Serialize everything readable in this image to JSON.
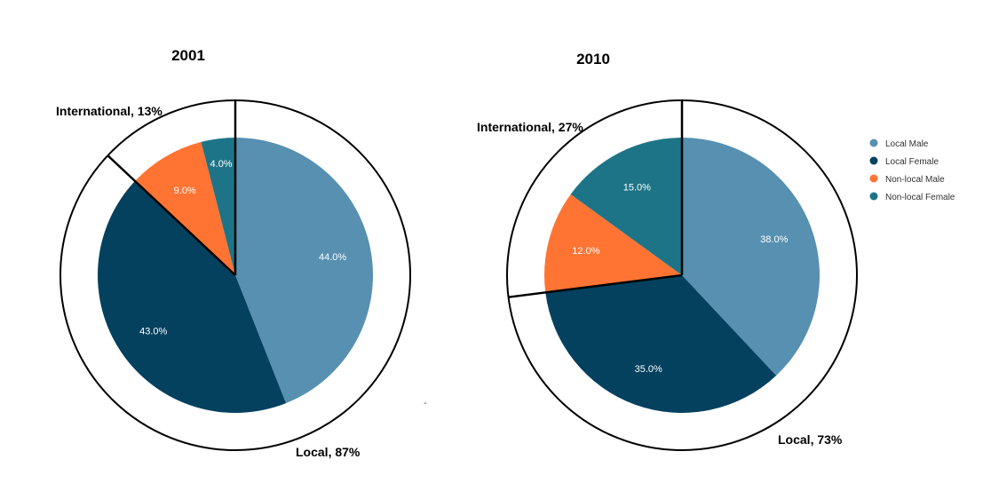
{
  "chart_data": [
    {
      "type": "pie",
      "title": "2001",
      "slices": [
        {
          "label": "Local Male",
          "value": 44.0,
          "text": "44.0%"
        },
        {
          "label": "Local Female",
          "value": 43.0,
          "text": "43.0%"
        },
        {
          "label": "Non-local Male",
          "value": 9.0,
          "text": "9.0%"
        },
        {
          "label": "Non-local Female",
          "value": 4.0,
          "text": "4.0%"
        }
      ],
      "groups": [
        {
          "text": "International, 13%",
          "value": 13
        },
        {
          "text": "Local, 87%",
          "value": 87
        }
      ]
    },
    {
      "type": "pie",
      "title": "2010",
      "slices": [
        {
          "label": "Local Male",
          "value": 38.0,
          "text": "38.0%"
        },
        {
          "label": "Local Female",
          "value": 35.0,
          "text": "35.0%"
        },
        {
          "label": "Non-local Male",
          "value": 12.0,
          "text": "12.0%"
        },
        {
          "label": "Non-local Female",
          "value": 15.0,
          "text": "15.0%"
        }
      ],
      "groups": [
        {
          "text": "International, 27%",
          "value": 27
        },
        {
          "text": "Local, 73%",
          "value": 73
        }
      ]
    }
  ],
  "legend": {
    "position": "right",
    "items": [
      {
        "label": "Local Male",
        "color": "#5790b0"
      },
      {
        "label": "Local Female",
        "color": "#03415f"
      },
      {
        "label": "Non-local Male",
        "color": "#ff7433"
      },
      {
        "label": "Non-local Female",
        "color": "#1e7487"
      }
    ]
  },
  "stray_mark": "-"
}
